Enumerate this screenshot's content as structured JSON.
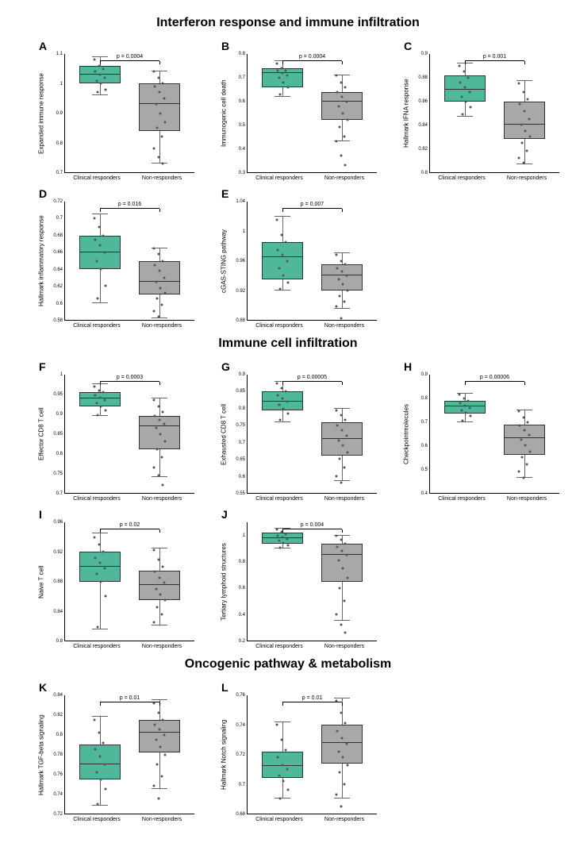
{
  "colors": {
    "responder_fill": "#4fb79a",
    "nonresponder_fill": "#a8a8a8",
    "box_border": "#333333",
    "whisker": "#666666",
    "point": "#555555",
    "axis": "#000000",
    "bg": "#ffffff"
  },
  "typography": {
    "section_title_size": 16,
    "panel_letter_size": 14,
    "ylabel_size": 8,
    "tick_size": 6,
    "xlabel_size": 7,
    "pval_size": 7
  },
  "x_categories": [
    "Clinical responders",
    "Non-responders"
  ],
  "sections": [
    {
      "title": "Interferon response and immune infiltration",
      "panels": [
        {
          "letter": "A",
          "ylabel": "Expanded immune response",
          "ylim": [
            0.7,
            1.1
          ],
          "yticks": [
            0.7,
            0.8,
            0.9,
            1.0,
            1.1
          ],
          "pvalue": "p = 0.0004",
          "groups": [
            {
              "key": "responder",
              "q1": 1.0,
              "median": 1.03,
              "q3": 1.06,
              "wlow": 0.96,
              "whigh": 1.09,
              "points": [
                1.08,
                1.06,
                1.05,
                1.04,
                1.03,
                1.02,
                1.01,
                1.0,
                0.98,
                0.97
              ]
            },
            {
              "key": "nonresponder",
              "q1": 0.84,
              "median": 0.93,
              "q3": 1.0,
              "wlow": 0.73,
              "whigh": 1.04,
              "points": [
                1.04,
                1.02,
                1.0,
                0.99,
                0.97,
                0.95,
                0.93,
                0.9,
                0.87,
                0.85,
                0.82,
                0.78,
                0.75,
                0.73
              ]
            }
          ]
        },
        {
          "letter": "B",
          "ylabel": "Immunogenic cell death",
          "ylim": [
            0.3,
            0.8
          ],
          "yticks": [
            0.3,
            0.4,
            0.5,
            0.6,
            0.7,
            0.8
          ],
          "pvalue": "p = 0.0004",
          "groups": [
            {
              "key": "responder",
              "q1": 0.66,
              "median": 0.72,
              "q3": 0.74,
              "wlow": 0.62,
              "whigh": 0.77,
              "points": [
                0.76,
                0.74,
                0.73,
                0.73,
                0.72,
                0.71,
                0.7,
                0.68,
                0.66,
                0.63
              ]
            },
            {
              "key": "nonresponder",
              "q1": 0.52,
              "median": 0.6,
              "q3": 0.64,
              "wlow": 0.43,
              "whigh": 0.71,
              "points": [
                0.71,
                0.68,
                0.66,
                0.64,
                0.62,
                0.6,
                0.58,
                0.55,
                0.52,
                0.49,
                0.45,
                0.43,
                0.37,
                0.33
              ]
            }
          ]
        },
        {
          "letter": "C",
          "ylabel": "Hallmark IFNA response",
          "ylim": [
            0.8,
            0.9
          ],
          "yticks": [
            0.8,
            0.82,
            0.84,
            0.86,
            0.88,
            0.9
          ],
          "pvalue": "p = 0.001",
          "groups": [
            {
              "key": "responder",
              "q1": 0.86,
              "median": 0.87,
              "q3": 0.882,
              "wlow": 0.847,
              "whigh": 0.892,
              "points": [
                0.89,
                0.885,
                0.88,
                0.876,
                0.872,
                0.868,
                0.864,
                0.86,
                0.855,
                0.849
              ]
            },
            {
              "key": "nonresponder",
              "q1": 0.828,
              "median": 0.84,
              "q3": 0.86,
              "wlow": 0.807,
              "whigh": 0.877,
              "points": [
                0.875,
                0.868,
                0.862,
                0.858,
                0.852,
                0.845,
                0.84,
                0.835,
                0.83,
                0.825,
                0.818,
                0.812,
                0.808
              ]
            }
          ]
        },
        {
          "letter": "D",
          "ylabel": "Hallmark inflammatory response",
          "ylim": [
            0.58,
            0.72
          ],
          "yticks": [
            0.58,
            0.6,
            0.62,
            0.64,
            0.66,
            0.68,
            0.7,
            0.72
          ],
          "pvalue": "p = 0.016",
          "groups": [
            {
              "key": "responder",
              "q1": 0.64,
              "median": 0.66,
              "q3": 0.68,
              "wlow": 0.6,
              "whigh": 0.705,
              "points": [
                0.7,
                0.69,
                0.68,
                0.675,
                0.668,
                0.66,
                0.65,
                0.64,
                0.62,
                0.605
              ]
            },
            {
              "key": "nonresponder",
              "q1": 0.61,
              "median": 0.625,
              "q3": 0.65,
              "wlow": 0.582,
              "whigh": 0.665,
              "points": [
                0.665,
                0.658,
                0.65,
                0.645,
                0.638,
                0.63,
                0.625,
                0.618,
                0.612,
                0.605,
                0.598,
                0.59,
                0.584
              ]
            }
          ]
        },
        {
          "letter": "E",
          "ylabel": "cGAS-STING pathway",
          "ylim": [
            0.88,
            1.04
          ],
          "yticks": [
            0.88,
            0.92,
            0.96,
            1.0,
            1.04
          ],
          "pvalue": "p = 0.007",
          "groups": [
            {
              "key": "responder",
              "q1": 0.935,
              "median": 0.965,
              "q3": 0.985,
              "wlow": 0.92,
              "whigh": 1.02,
              "points": [
                1.015,
                0.995,
                0.985,
                0.975,
                0.968,
                0.96,
                0.95,
                0.94,
                0.93,
                0.922
              ]
            },
            {
              "key": "nonresponder",
              "q1": 0.92,
              "median": 0.94,
              "q3": 0.955,
              "wlow": 0.895,
              "whigh": 0.97,
              "points": [
                0.968,
                0.96,
                0.955,
                0.95,
                0.945,
                0.94,
                0.935,
                0.928,
                0.92,
                0.912,
                0.905,
                0.898,
                0.882
              ]
            }
          ]
        }
      ]
    },
    {
      "title": "Immune cell infiltration",
      "panels": [
        {
          "letter": "F",
          "ylabel": "Effector CD8 T cell",
          "ylim": [
            0.7,
            1.0
          ],
          "yticks": [
            0.7,
            0.75,
            0.8,
            0.85,
            0.9,
            0.95,
            1.0
          ],
          "pvalue": "p = 0.0003",
          "groups": [
            {
              "key": "responder",
              "q1": 0.92,
              "median": 0.94,
              "q3": 0.955,
              "wlow": 0.895,
              "whigh": 0.975,
              "points": [
                0.97,
                0.96,
                0.955,
                0.948,
                0.942,
                0.935,
                0.928,
                0.92,
                0.91,
                0.898
              ]
            },
            {
              "key": "nonresponder",
              "q1": 0.81,
              "median": 0.87,
              "q3": 0.895,
              "wlow": 0.74,
              "whigh": 0.94,
              "points": [
                0.935,
                0.92,
                0.905,
                0.895,
                0.885,
                0.875,
                0.865,
                0.85,
                0.83,
                0.81,
                0.79,
                0.765,
                0.745,
                0.72
              ]
            }
          ]
        },
        {
          "letter": "G",
          "ylabel": "Exhausted CD8 T cell",
          "ylim": [
            0.55,
            0.9
          ],
          "yticks": [
            0.55,
            0.6,
            0.65,
            0.7,
            0.75,
            0.8,
            0.85,
            0.9
          ],
          "pvalue": "p = 0.00005",
          "groups": [
            {
              "key": "responder",
              "q1": 0.795,
              "median": 0.82,
              "q3": 0.85,
              "wlow": 0.76,
              "whigh": 0.88,
              "points": [
                0.875,
                0.86,
                0.85,
                0.84,
                0.83,
                0.82,
                0.81,
                0.8,
                0.785,
                0.765
              ]
            },
            {
              "key": "nonresponder",
              "q1": 0.66,
              "median": 0.71,
              "q3": 0.76,
              "wlow": 0.585,
              "whigh": 0.8,
              "points": [
                0.795,
                0.78,
                0.765,
                0.75,
                0.735,
                0.72,
                0.705,
                0.69,
                0.67,
                0.65,
                0.625,
                0.6,
                0.58
              ]
            }
          ]
        },
        {
          "letter": "H",
          "ylabel": "Checkpointmolecules",
          "ylim": [
            0.4,
            0.9
          ],
          "yticks": [
            0.4,
            0.5,
            0.6,
            0.7,
            0.8,
            0.9
          ],
          "pvalue": "p = 0.00006",
          "groups": [
            {
              "key": "responder",
              "q1": 0.735,
              "median": 0.765,
              "q3": 0.79,
              "wlow": 0.7,
              "whigh": 0.82,
              "points": [
                0.815,
                0.8,
                0.79,
                0.78,
                0.77,
                0.76,
                0.75,
                0.74,
                0.725,
                0.705
              ]
            },
            {
              "key": "nonresponder",
              "q1": 0.56,
              "median": 0.63,
              "q3": 0.69,
              "wlow": 0.465,
              "whigh": 0.75,
              "points": [
                0.745,
                0.72,
                0.7,
                0.685,
                0.665,
                0.645,
                0.625,
                0.6,
                0.575,
                0.55,
                0.52,
                0.49,
                0.465
              ]
            }
          ]
        },
        {
          "letter": "I",
          "ylabel": "Naive T cell",
          "ylim": [
            0.8,
            0.96
          ],
          "yticks": [
            0.8,
            0.84,
            0.88,
            0.92,
            0.96
          ],
          "pvalue": "p = 0.02",
          "groups": [
            {
              "key": "responder",
              "q1": 0.88,
              "median": 0.9,
              "q3": 0.92,
              "wlow": 0.815,
              "whigh": 0.945,
              "points": [
                0.94,
                0.93,
                0.92,
                0.912,
                0.905,
                0.898,
                0.89,
                0.88,
                0.86,
                0.818
              ]
            },
            {
              "key": "nonresponder",
              "q1": 0.855,
              "median": 0.875,
              "q3": 0.895,
              "wlow": 0.82,
              "whigh": 0.925,
              "points": [
                0.922,
                0.91,
                0.9,
                0.893,
                0.885,
                0.878,
                0.87,
                0.862,
                0.855,
                0.845,
                0.835,
                0.825
              ]
            }
          ]
        },
        {
          "letter": "J",
          "ylabel": "Tertiary lymphoid structures",
          "ylim": [
            0.2,
            1.1
          ],
          "yticks": [
            0.2,
            0.4,
            0.6,
            0.8,
            1.0
          ],
          "pvalue": "p = 0.004",
          "groups": [
            {
              "key": "responder",
              "q1": 0.94,
              "median": 0.98,
              "q3": 1.02,
              "wlow": 0.9,
              "whigh": 1.05,
              "points": [
                1.045,
                1.025,
                1.01,
                0.995,
                0.985,
                0.975,
                0.96,
                0.945,
                0.925,
                0.905
              ]
            },
            {
              "key": "nonresponder",
              "q1": 0.65,
              "median": 0.85,
              "q3": 0.94,
              "wlow": 0.35,
              "whigh": 1.0,
              "points": [
                0.995,
                0.965,
                0.94,
                0.915,
                0.885,
                0.855,
                0.81,
                0.75,
                0.68,
                0.6,
                0.5,
                0.4,
                0.32,
                0.26
              ]
            }
          ]
        }
      ]
    },
    {
      "title": "Oncogenic pathway & metabolism",
      "panels": [
        {
          "letter": "K",
          "ylabel": "Hallmark TGF-beta signaling",
          "ylim": [
            0.72,
            0.84
          ],
          "yticks": [
            0.72,
            0.74,
            0.76,
            0.78,
            0.8,
            0.82,
            0.84
          ],
          "pvalue": "p = 0.01",
          "groups": [
            {
              "key": "responder",
              "q1": 0.755,
              "median": 0.77,
              "q3": 0.79,
              "wlow": 0.728,
              "whigh": 0.818,
              "points": [
                0.815,
                0.802,
                0.792,
                0.785,
                0.778,
                0.77,
                0.762,
                0.755,
                0.745,
                0.73
              ]
            },
            {
              "key": "nonresponder",
              "q1": 0.782,
              "median": 0.802,
              "q3": 0.815,
              "wlow": 0.745,
              "whigh": 0.835,
              "points": [
                0.832,
                0.822,
                0.815,
                0.81,
                0.805,
                0.8,
                0.795,
                0.788,
                0.78,
                0.77,
                0.758,
                0.748,
                0.735
              ]
            }
          ]
        },
        {
          "letter": "L",
          "ylabel": "Hallmark Notch signaling",
          "ylim": [
            0.68,
            0.76
          ],
          "yticks": [
            0.68,
            0.7,
            0.72,
            0.74,
            0.76
          ],
          "pvalue": "p = 0.01",
          "groups": [
            {
              "key": "responder",
              "q1": 0.704,
              "median": 0.712,
              "q3": 0.722,
              "wlow": 0.69,
              "whigh": 0.742,
              "points": [
                0.74,
                0.73,
                0.723,
                0.718,
                0.713,
                0.71,
                0.706,
                0.702,
                0.696,
                0.69
              ]
            },
            {
              "key": "nonresponder",
              "q1": 0.714,
              "median": 0.728,
              "q3": 0.74,
              "wlow": 0.69,
              "whigh": 0.758,
              "points": [
                0.756,
                0.748,
                0.741,
                0.736,
                0.731,
                0.727,
                0.722,
                0.718,
                0.713,
                0.708,
                0.7,
                0.693,
                0.685
              ]
            }
          ]
        }
      ]
    }
  ]
}
